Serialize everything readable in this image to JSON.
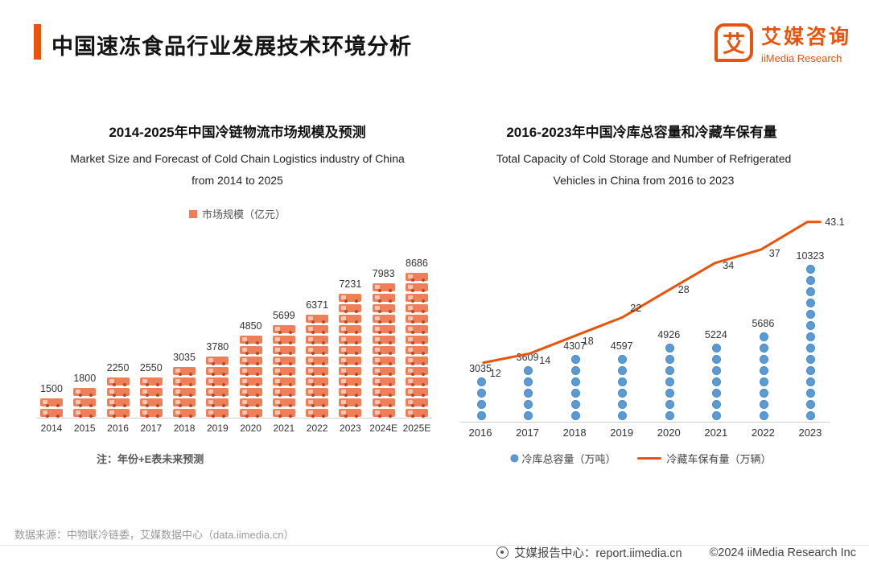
{
  "colors": {
    "accent": "#E8540C",
    "bar_orange": "#EE7F58",
    "thermo_blue": "#5B9BD5",
    "axis_gray": "#CFCFCF"
  },
  "header": {
    "title": "中国速冻食品行业发展技术环境分析",
    "logo_glyph": "艾",
    "logo_cn": "艾媒咨询",
    "logo_en": "iiMedia Research"
  },
  "chart_data": [
    {
      "type": "bar",
      "pictogram": "truck-icon",
      "title": "2014-2025年中国冷链物流市场规模及预测",
      "subtitle": "Market Size and Forecast of Cold Chain Logistics industry of China from 2014 to 2025",
      "legend": "市场规模（亿元）",
      "categories": [
        "2014",
        "2015",
        "2016",
        "2017",
        "2018",
        "2019",
        "2020",
        "2021",
        "2022",
        "2023",
        "2024E",
        "2025E"
      ],
      "values": [
        1500,
        1800,
        2250,
        2550,
        3035,
        3780,
        4850,
        5699,
        6371,
        7231,
        7983,
        8686
      ],
      "ylim": [
        0,
        9000
      ],
      "note": "注：年份+E表未来预测"
    },
    {
      "type": "combo",
      "title": "2016-2023年中国冷库总容量和冷藏车保有量",
      "subtitle": "Total Capacity of Cold Storage and Number of Refrigerated Vehicles in China from 2016 to 2023",
      "categories": [
        "2016",
        "2017",
        "2018",
        "2019",
        "2020",
        "2021",
        "2022",
        "2023"
      ],
      "series": [
        {
          "name": "冷库总容量（万吨）",
          "type": "pictogram-bar",
          "pictogram": "thermometer-icon",
          "values": [
            3035,
            3609,
            4307,
            4597,
            4926,
            5224,
            5686,
            10323
          ]
        },
        {
          "name": "冷藏车保有量（万辆）",
          "type": "line",
          "values": [
            12,
            14,
            18,
            22,
            28,
            34,
            37,
            43.1
          ]
        }
      ],
      "legend_position": "bottom"
    }
  ],
  "footer": {
    "source": "数据来源：中物联冷链委，艾媒数据中心（data.iimedia.cn）",
    "report_center": "艾媒报告中心：report.iimedia.cn",
    "copyright": "©2024  iiMedia Research Inc"
  }
}
